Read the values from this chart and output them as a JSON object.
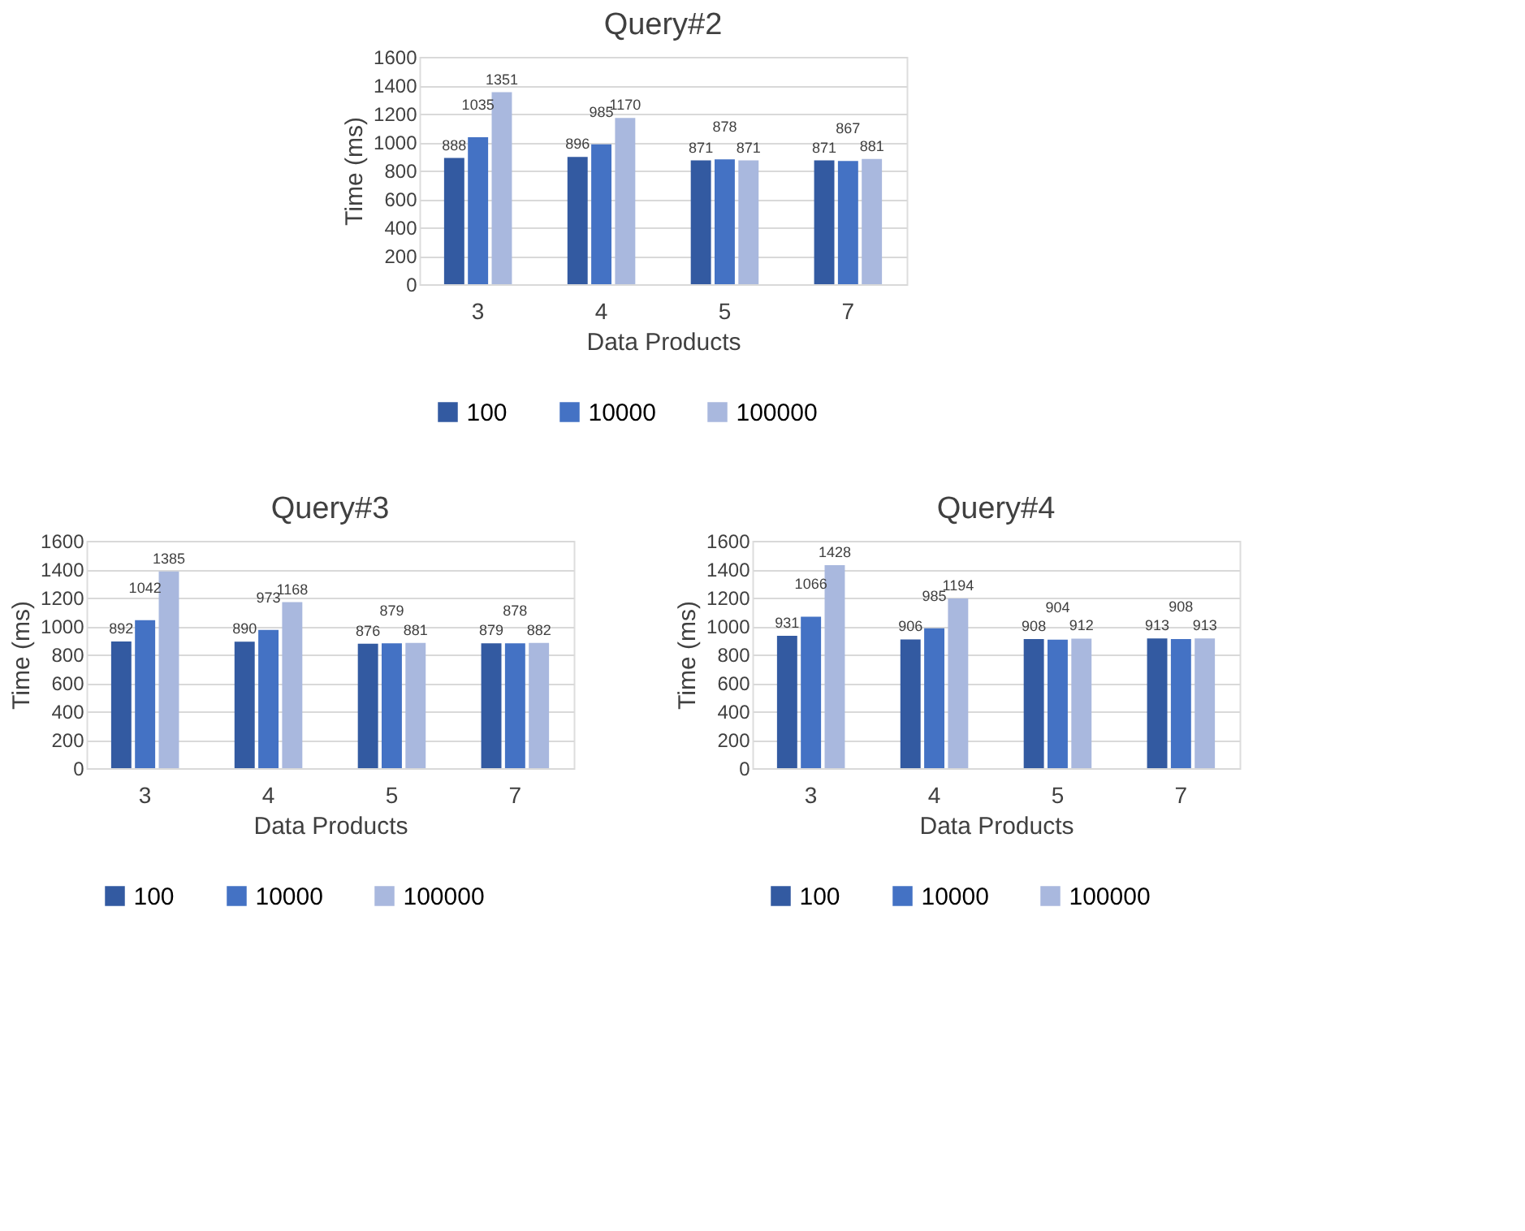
{
  "chart_data": [
    {
      "type": "bar",
      "title": "Query#2",
      "xlabel": "Data Products",
      "ylabel": "Time (ms)",
      "categories": [
        "3",
        "4",
        "5",
        "7"
      ],
      "series": [
        {
          "name": "100",
          "color": "#335aa1",
          "values": [
            888,
            896,
            871,
            871
          ]
        },
        {
          "name": "10000",
          "color": "#4472c4",
          "values": [
            1035,
            985,
            878,
            867
          ]
        },
        {
          "name": "100000",
          "color": "#a9b8de",
          "values": [
            1351,
            1170,
            871,
            881
          ]
        }
      ],
      "ylim": [
        0,
        1600
      ],
      "yticks": [
        0,
        200,
        400,
        600,
        800,
        1000,
        1200,
        1400,
        1600
      ],
      "grid": "y",
      "legend": "bottom",
      "data_labels": true
    },
    {
      "type": "bar",
      "title": "Query#3",
      "xlabel": "Data Products",
      "ylabel": "Time (ms)",
      "categories": [
        "3",
        "4",
        "5",
        "7"
      ],
      "series": [
        {
          "name": "100",
          "color": "#335aa1",
          "values": [
            892,
            890,
            876,
            879
          ]
        },
        {
          "name": "10000",
          "color": "#4472c4",
          "values": [
            1042,
            973,
            879,
            878
          ]
        },
        {
          "name": "100000",
          "color": "#a9b8de",
          "values": [
            1385,
            1168,
            881,
            882
          ]
        }
      ],
      "ylim": [
        0,
        1600
      ],
      "yticks": [
        0,
        200,
        400,
        600,
        800,
        1000,
        1200,
        1400,
        1600
      ],
      "grid": "y",
      "legend": "bottom",
      "data_labels": true
    },
    {
      "type": "bar",
      "title": "Query#4",
      "xlabel": "Data Products",
      "ylabel": "Time (ms)",
      "categories": [
        "3",
        "4",
        "5",
        "7"
      ],
      "series": [
        {
          "name": "100",
          "color": "#335aa1",
          "values": [
            931,
            906,
            908,
            913
          ]
        },
        {
          "name": "10000",
          "color": "#4472c4",
          "values": [
            1066,
            985,
            904,
            908
          ]
        },
        {
          "name": "100000",
          "color": "#a9b8de",
          "values": [
            1428,
            1194,
            912,
            913
          ]
        }
      ],
      "ylim": [
        0,
        1600
      ],
      "yticks": [
        0,
        200,
        400,
        600,
        800,
        1000,
        1200,
        1400,
        1600
      ],
      "grid": "y",
      "legend": "bottom",
      "data_labels": true
    }
  ]
}
